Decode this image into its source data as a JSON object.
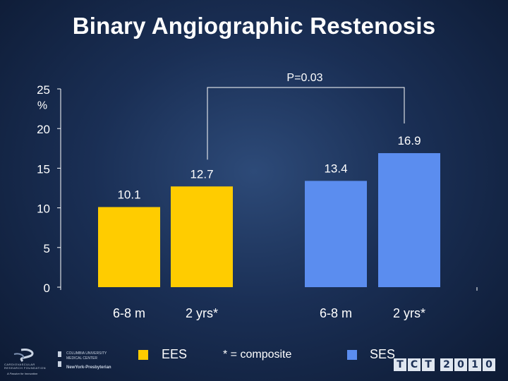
{
  "title": "Binary Angiographic Restenosis",
  "chart_data": {
    "type": "bar",
    "title": "Binary Angiographic Restenosis",
    "ylabel": "%",
    "ylim": [
      0,
      25
    ],
    "yticks": [
      0,
      5,
      10,
      15,
      20,
      25
    ],
    "categories": [
      "6-8 m",
      "2 yrs*",
      "6-8 m",
      "2 yrs*"
    ],
    "values": [
      10.1,
      12.7,
      13.4,
      16.9
    ],
    "value_labels": [
      "10.1",
      "12.7",
      "13.4",
      "16.9"
    ],
    "groups": [
      "EES",
      "EES",
      "SES",
      "SES"
    ],
    "colors": [
      "#FFCC00",
      "#FFCC00",
      "#5B8DEF",
      "#5B8DEF"
    ],
    "annotation": "P=0.03"
  },
  "legend": {
    "ees_label": "EES",
    "ees_color": "#FFCC00",
    "note": "* = composite",
    "ses_label": "SES",
    "ses_color": "#5B8DEF"
  },
  "footer": {
    "left_logo_text": "CARDIOVASCULAR RESEARCH FOUNDATION",
    "left_logo_sub": "A Passion for Innovation",
    "columbia_text": "COLUMBIA UNIVERSITY MEDICAL CENTER",
    "nyp_text": "NewYork-Presbyterian",
    "tct_chars": [
      "T",
      "C",
      "T",
      "2",
      "0",
      "1",
      "0"
    ]
  }
}
